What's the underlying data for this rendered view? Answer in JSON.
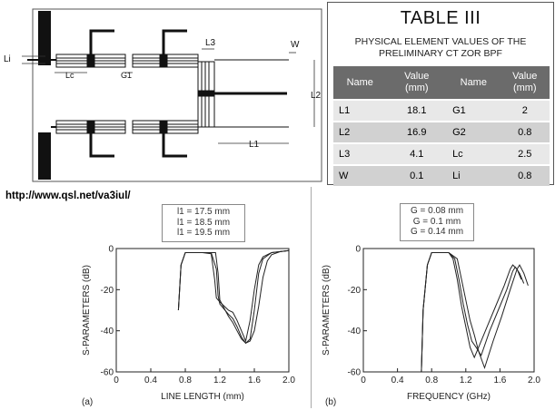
{
  "source_url": "http://www.qsl.net/va3iul/",
  "layout_labels": {
    "li": "Li",
    "lc": "Lc",
    "g1": "G1",
    "l3": "L3",
    "w": "W",
    "l2": "L2",
    "l1": "L1"
  },
  "table": {
    "title": "TABLE III",
    "caption_line1": "PHYSICAL ELEMENT VALUES OF THE",
    "caption_line2": "PRELIMINARY CT ZOR BPF",
    "headers": {
      "name": "Name",
      "value": "Value",
      "unit": "(mm)"
    },
    "rows": [
      {
        "n1": "L1",
        "v1": "18.1",
        "n2": "G1",
        "v2": "2"
      },
      {
        "n1": "L2",
        "v1": "16.9",
        "n2": "G2",
        "v2": "0.8"
      },
      {
        "n1": "L3",
        "v1": "4.1",
        "n2": "Lc",
        "v2": "2.5"
      },
      {
        "n1": "W",
        "v1": "0.1",
        "n2": "Li",
        "v2": "0.8"
      }
    ]
  },
  "chart_data": [
    {
      "type": "line",
      "panel_label": "(a)",
      "xlabel": "LINE LENGTH (mm)",
      "ylabel": "S-PARAMETERS (dB)",
      "xlim": [
        0,
        2.0
      ],
      "ylim": [
        -60,
        0
      ],
      "xticks": [
        "0",
        "0.4",
        "0.8",
        "1.2",
        "1.6",
        "2.0"
      ],
      "yticks": [
        "0",
        "-20",
        "-40",
        "-60"
      ],
      "legend": [
        "l1 = 17.5 mm",
        "l1 = 18.5 mm",
        "l1 = 19.5 mm"
      ],
      "series": [
        {
          "name": "l1 = 17.5 mm",
          "x": [
            0.72,
            0.75,
            0.8,
            1.0,
            1.1,
            1.14,
            1.16,
            1.2,
            1.3,
            1.35,
            1.4,
            1.45,
            1.5,
            1.55,
            1.6,
            1.65,
            1.7,
            1.8,
            1.9,
            2.0
          ],
          "y": [
            -30,
            -8,
            -2,
            -2,
            -2.5,
            -15,
            -24,
            -26,
            -30,
            -31,
            -35,
            -40,
            -45,
            -35,
            -20,
            -8,
            -4,
            -2,
            -1.5,
            -1
          ]
        },
        {
          "name": "l1 = 18.5 mm",
          "x": [
            0.72,
            0.75,
            0.8,
            1.0,
            1.1,
            1.16,
            1.18,
            1.2,
            1.3,
            1.35,
            1.4,
            1.45,
            1.5,
            1.55,
            1.6,
            1.65,
            1.7,
            1.8,
            1.9,
            2.0
          ],
          "y": [
            -30,
            -8,
            -2,
            -2,
            -2,
            -10,
            -23,
            -27,
            -32,
            -34,
            -38,
            -43,
            -46,
            -44,
            -30,
            -12,
            -5,
            -2,
            -1.5,
            -1
          ]
        },
        {
          "name": "l1 = 19.5 mm",
          "x": [
            0.72,
            0.75,
            0.8,
            1.0,
            1.15,
            1.18,
            1.2,
            1.3,
            1.35,
            1.4,
            1.45,
            1.5,
            1.55,
            1.6,
            1.65,
            1.7,
            1.75,
            1.8,
            1.9,
            2.0
          ],
          "y": [
            -30,
            -8,
            -2,
            -2,
            -2,
            -12,
            -25,
            -33,
            -36,
            -40,
            -44,
            -46,
            -45,
            -40,
            -28,
            -14,
            -6,
            -3,
            -1.5,
            -1
          ]
        }
      ]
    },
    {
      "type": "line",
      "panel_label": "(b)",
      "xlabel": "FREQUENCY (GHz)",
      "ylabel": "S-PARAMETERS (dB)",
      "xlim": [
        0,
        2.0
      ],
      "ylim": [
        -60,
        0
      ],
      "xticks": [
        "0",
        "0.4",
        "0.8",
        "1.2",
        "1.6",
        "2.0"
      ],
      "yticks": [
        "0",
        "-20",
        "-40",
        "-60"
      ],
      "legend": [
        "G = 0.08 mm",
        "G = 0.1 mm",
        "G = 0.14 mm"
      ],
      "series": [
        {
          "name": "G = 0.08 mm",
          "x": [
            0.68,
            0.7,
            0.75,
            0.8,
            1.0,
            1.05,
            1.1,
            1.15,
            1.2,
            1.25,
            1.3,
            1.35,
            1.45,
            1.55,
            1.65,
            1.72,
            1.75,
            1.8,
            1.85
          ],
          "y": [
            -60,
            -30,
            -8,
            -2,
            -2,
            -5,
            -15,
            -28,
            -38,
            -48,
            -53,
            -48,
            -38,
            -28,
            -18,
            -10,
            -8,
            -10,
            -15
          ]
        },
        {
          "name": "G = 0.1 mm",
          "x": [
            0.68,
            0.7,
            0.75,
            0.8,
            1.0,
            1.07,
            1.12,
            1.17,
            1.22,
            1.27,
            1.32,
            1.38,
            1.48,
            1.58,
            1.68,
            1.75,
            1.78,
            1.83,
            1.88
          ],
          "y": [
            -60,
            -30,
            -8,
            -2,
            -2,
            -5,
            -15,
            -27,
            -37,
            -45,
            -48,
            -52,
            -40,
            -30,
            -20,
            -11,
            -9,
            -12,
            -17
          ]
        },
        {
          "name": "G = 0.14 mm",
          "x": [
            0.68,
            0.7,
            0.75,
            0.8,
            1.0,
            1.1,
            1.15,
            1.2,
            1.25,
            1.3,
            1.35,
            1.42,
            1.52,
            1.62,
            1.72,
            1.8,
            1.83,
            1.88,
            1.93
          ],
          "y": [
            -60,
            -30,
            -8,
            -2,
            -2,
            -5,
            -15,
            -25,
            -35,
            -42,
            -50,
            -58,
            -45,
            -33,
            -20,
            -10,
            -8,
            -12,
            -18
          ]
        }
      ]
    }
  ]
}
